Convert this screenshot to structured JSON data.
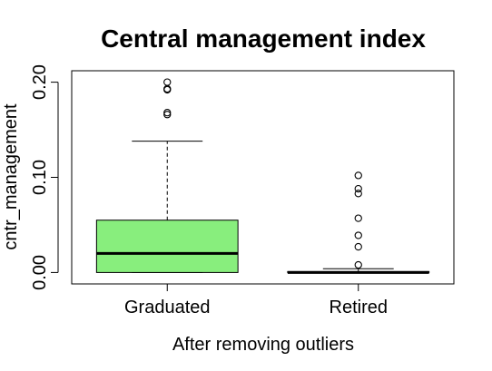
{
  "chart_data": {
    "type": "boxplot",
    "title": "Central management index",
    "xlabel": "After removing outliers",
    "ylabel": "cntr_management",
    "ylim": [
      -0.012,
      0.212
    ],
    "yticks": [
      0.0,
      0.1,
      0.2
    ],
    "ytick_labels": [
      "0.00",
      "0.10",
      "0.20"
    ],
    "categories": [
      "Graduated",
      "Retired"
    ],
    "grid": false,
    "legend": "none",
    "boxes": [
      {
        "name": "Graduated",
        "fill": "#88ee7d",
        "whisker_low": 0.0,
        "q1": 0.0,
        "median": 0.02,
        "q3": 0.055,
        "whisker_high": 0.138,
        "outliers": [
          0.2,
          0.192,
          0.193,
          0.168,
          0.166
        ]
      },
      {
        "name": "Retired",
        "fill": "#88ee7d",
        "whisker_low": 0.0,
        "q1": 0.0,
        "median": 0.0,
        "q3": 0.001,
        "whisker_high": 0.004,
        "outliers": [
          0.102,
          0.088,
          0.083,
          0.057,
          0.039,
          0.027,
          0.008
        ]
      }
    ]
  }
}
